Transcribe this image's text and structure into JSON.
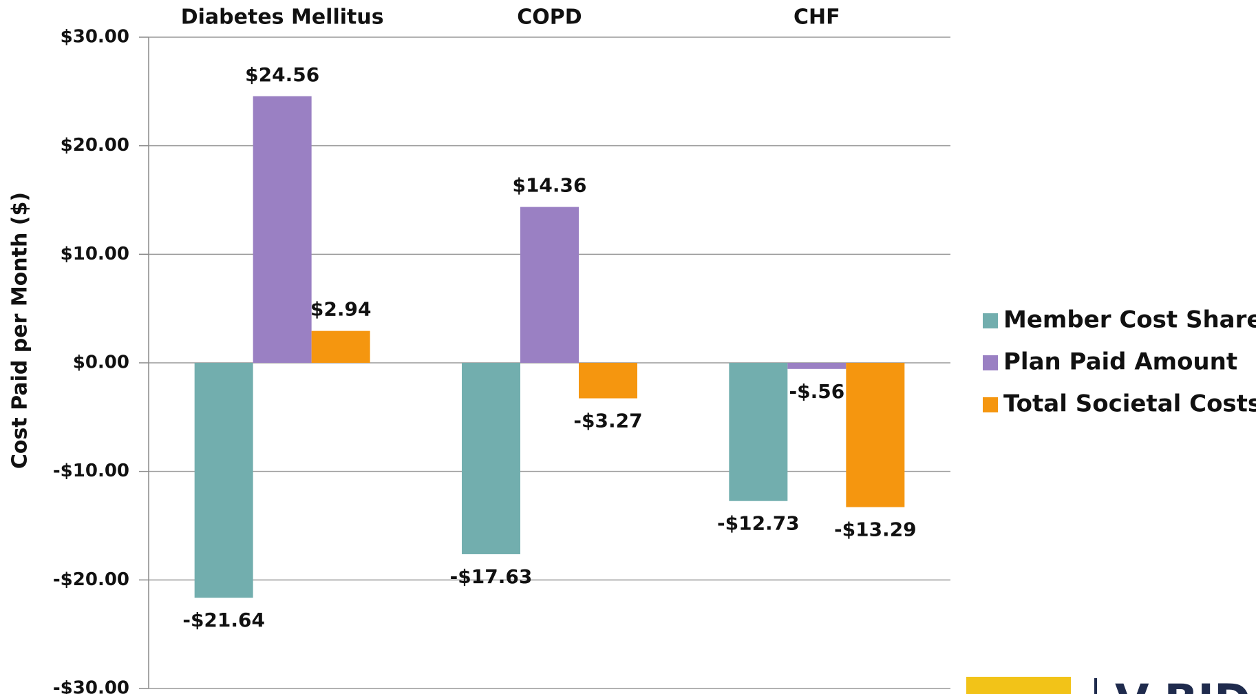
{
  "chart_data": {
    "type": "bar",
    "y_label": "Cost Paid per Month ($)",
    "categories": [
      "Diabetes Mellitus",
      "COPD",
      "CHF"
    ],
    "series": [
      {
        "name": "Member Cost Share",
        "color": "#72aeae",
        "values": [
          -21.64,
          -17.63,
          -12.73
        ],
        "value_labels": [
          "-$21.64",
          "-$17.63",
          "-$12.73"
        ]
      },
      {
        "name": "Plan Paid Amount",
        "color": "#9a80c3",
        "values": [
          24.56,
          14.36,
          -0.56
        ],
        "value_labels": [
          "$24.56",
          "$14.36",
          "-$.56"
        ]
      },
      {
        "name": "Total Societal Costs",
        "color": "#f5960f",
        "values": [
          2.94,
          -3.27,
          -13.29
        ],
        "value_labels": [
          "$2.94",
          "-$3.27",
          "-$13.29"
        ]
      }
    ],
    "ylim": [
      -30,
      30
    ],
    "yticks": [
      {
        "value": -30,
        "label": "-$30.00"
      },
      {
        "value": -20,
        "label": "-$20.00"
      },
      {
        "value": -10,
        "label": "-$10.00"
      },
      {
        "value": 0,
        "label": "$0.00"
      },
      {
        "value": 10,
        "label": "$10.00"
      },
      {
        "value": 20,
        "label": "$20.00"
      },
      {
        "value": 30,
        "label": "$30.00"
      }
    ],
    "grid": true,
    "legend": "right"
  },
  "logo_text": "V-BID"
}
